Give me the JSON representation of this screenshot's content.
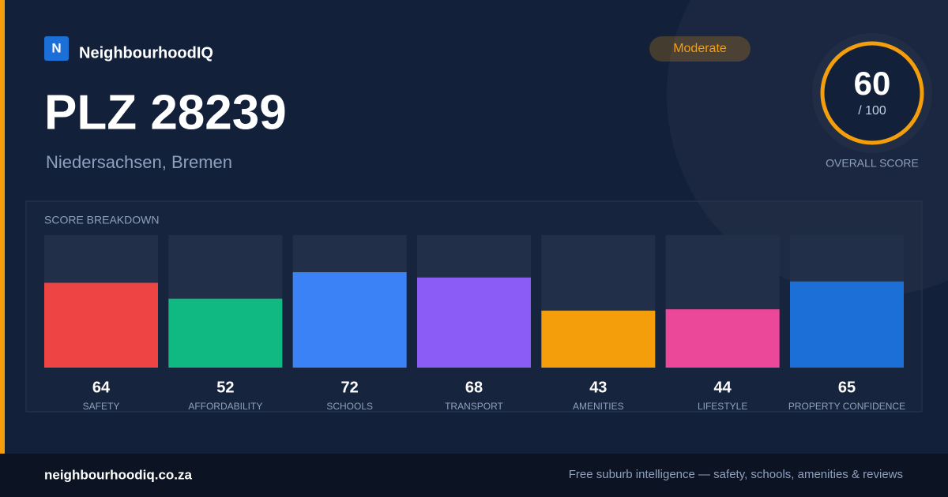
{
  "brand": {
    "logo": "N",
    "name": "NeighbourhoodIQ"
  },
  "badge": "Moderate",
  "title": "PLZ 28239",
  "subtitle": "Niedersachsen, Bremen",
  "overall": {
    "score": 60,
    "out_of": "/ 100",
    "label": "OVERALL SCORE"
  },
  "chart_data": {
    "type": "bar",
    "title": "SCORE BREAKDOWN",
    "categories": [
      "SAFETY",
      "AFFORDABILITY",
      "SCHOOLS",
      "TRANSPORT",
      "AMENITIES",
      "LIFESTYLE",
      "PROPERTY CONFIDENCE"
    ],
    "values": [
      64,
      52,
      72,
      68,
      43,
      44,
      65
    ],
    "colors": [
      "#ef4444",
      "#10b981",
      "#3b82f6",
      "#8b5cf6",
      "#f59e0b",
      "#ec4899",
      "#1d6fd8"
    ],
    "ylim": [
      0,
      100
    ]
  },
  "footer": {
    "site": "neighbourhoodiq.co.za",
    "tagline": "Free suburb intelligence — safety, schools, amenities & reviews"
  }
}
